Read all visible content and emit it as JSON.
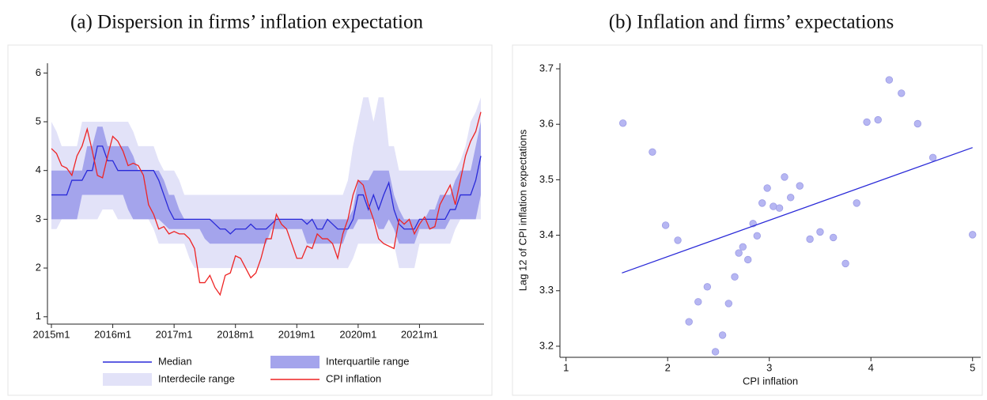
{
  "chart_data": [
    {
      "type": "line",
      "title": "(a) Dispersion in firms’ inflation expectation",
      "x": [
        "2015m1",
        "2015m2",
        "2015m3",
        "2015m4",
        "2015m5",
        "2015m6",
        "2015m7",
        "2015m8",
        "2015m9",
        "2015m10",
        "2015m11",
        "2015m12",
        "2016m1",
        "2016m2",
        "2016m3",
        "2016m4",
        "2016m5",
        "2016m6",
        "2016m7",
        "2016m8",
        "2016m9",
        "2016m10",
        "2016m11",
        "2016m12",
        "2017m1",
        "2017m2",
        "2017m3",
        "2017m4",
        "2017m5",
        "2017m6",
        "2017m7",
        "2017m8",
        "2017m9",
        "2017m10",
        "2017m11",
        "2017m12",
        "2018m1",
        "2018m2",
        "2018m3",
        "2018m4",
        "2018m5",
        "2018m6",
        "2018m7",
        "2018m8",
        "2018m9",
        "2018m10",
        "2018m11",
        "2018m12",
        "2019m1",
        "2019m2",
        "2019m3",
        "2019m4",
        "2019m5",
        "2019m6",
        "2019m7",
        "2019m8",
        "2019m9",
        "2019m10",
        "2019m11",
        "2019m12",
        "2020m1",
        "2020m2",
        "2020m3",
        "2020m4",
        "2020m5",
        "2020m6",
        "2020m7",
        "2020m8",
        "2020m9",
        "2020m10",
        "2020m11",
        "2020m12",
        "2021m1",
        "2021m2",
        "2021m3",
        "2021m4",
        "2021m5",
        "2021m6",
        "2021m7",
        "2021m8",
        "2021m9",
        "2021m10",
        "2021m11",
        "2021m12",
        "2022m1"
      ],
      "series": [
        {
          "name": "Median",
          "type": "line",
          "color": "#2a2ad8",
          "values": [
            3.5,
            3.5,
            3.5,
            3.5,
            3.8,
            3.8,
            3.8,
            4.0,
            4.0,
            4.5,
            4.5,
            4.2,
            4.2,
            4.0,
            4.0,
            4.0,
            4.0,
            4.0,
            4.0,
            4.0,
            4.0,
            3.8,
            3.5,
            3.2,
            3.0,
            3.0,
            3.0,
            3.0,
            3.0,
            3.0,
            3.0,
            3.0,
            2.9,
            2.8,
            2.8,
            2.7,
            2.8,
            2.8,
            2.8,
            2.9,
            2.8,
            2.8,
            2.8,
            2.9,
            3.0,
            3.0,
            3.0,
            3.0,
            3.0,
            3.0,
            2.9,
            3.0,
            2.8,
            2.8,
            3.0,
            2.9,
            2.8,
            2.8,
            2.8,
            3.0,
            3.5,
            3.5,
            3.2,
            3.5,
            3.2,
            3.5,
            3.75,
            3.2,
            2.9,
            2.8,
            2.8,
            2.8,
            3.0,
            3.0,
            3.0,
            3.0,
            3.0,
            3.0,
            3.2,
            3.2,
            3.5,
            3.5,
            3.5,
            3.8,
            4.3
          ]
        },
        {
          "name": "Interquartile range",
          "type": "band",
          "color": "#a4a4ec",
          "low": [
            3.0,
            3.0,
            3.0,
            3.0,
            3.0,
            3.0,
            3.5,
            3.5,
            3.5,
            3.5,
            3.5,
            3.5,
            3.5,
            3.5,
            3.5,
            3.2,
            3.0,
            3.0,
            3.0,
            3.0,
            3.0,
            3.0,
            2.9,
            2.8,
            2.8,
            2.8,
            2.8,
            2.8,
            2.8,
            2.8,
            2.6,
            2.5,
            2.5,
            2.5,
            2.5,
            2.5,
            2.5,
            2.5,
            2.5,
            2.5,
            2.5,
            2.5,
            2.5,
            2.8,
            2.8,
            2.8,
            2.8,
            2.8,
            2.8,
            2.8,
            2.5,
            2.5,
            2.5,
            2.5,
            2.5,
            2.5,
            2.5,
            2.5,
            2.8,
            2.8,
            3.0,
            3.0,
            3.0,
            3.0,
            2.8,
            2.8,
            3.0,
            2.8,
            2.5,
            2.5,
            2.5,
            2.5,
            2.8,
            2.8,
            2.8,
            2.8,
            2.8,
            2.8,
            3.0,
            3.0,
            3.0,
            3.0,
            3.0,
            3.0,
            3.5
          ],
          "high": [
            4.0,
            4.0,
            4.0,
            4.0,
            4.0,
            4.0,
            4.0,
            4.5,
            4.5,
            4.9,
            4.9,
            4.5,
            4.5,
            4.5,
            4.5,
            4.5,
            4.3,
            4.0,
            4.0,
            4.0,
            4.0,
            4.0,
            3.8,
            3.5,
            3.5,
            3.2,
            3.0,
            3.0,
            3.0,
            3.0,
            3.0,
            3.0,
            3.0,
            3.0,
            3.0,
            3.0,
            3.0,
            3.0,
            3.0,
            3.0,
            3.0,
            3.0,
            3.0,
            3.0,
            3.0,
            3.0,
            3.0,
            3.0,
            3.0,
            3.0,
            3.0,
            3.0,
            3.0,
            3.0,
            3.0,
            3.0,
            3.0,
            3.0,
            3.0,
            3.2,
            3.8,
            3.8,
            3.8,
            4.0,
            4.0,
            4.0,
            4.0,
            3.5,
            3.2,
            3.0,
            3.0,
            3.0,
            3.0,
            3.0,
            3.2,
            3.2,
            3.5,
            3.5,
            3.5,
            3.8,
            4.0,
            4.0,
            4.0,
            4.5,
            5.0
          ]
        },
        {
          "name": "Interdecile range",
          "type": "band",
          "color": "#e2e2f8",
          "low": [
            2.8,
            2.8,
            3.0,
            3.0,
            3.0,
            3.0,
            3.0,
            3.0,
            3.0,
            3.0,
            3.2,
            3.2,
            3.2,
            3.0,
            3.0,
            3.0,
            3.0,
            3.0,
            3.0,
            3.0,
            2.8,
            2.5,
            2.5,
            2.5,
            2.5,
            2.5,
            2.5,
            2.2,
            2.0,
            2.0,
            2.0,
            2.0,
            2.0,
            2.0,
            2.0,
            2.0,
            2.0,
            2.0,
            2.0,
            2.0,
            2.0,
            2.0,
            2.0,
            2.0,
            2.0,
            2.0,
            2.0,
            2.0,
            2.0,
            2.0,
            2.0,
            2.0,
            2.0,
            2.0,
            2.0,
            2.0,
            2.0,
            2.0,
            2.0,
            2.2,
            2.5,
            2.5,
            2.5,
            2.5,
            2.5,
            2.5,
            2.5,
            2.5,
            2.0,
            2.0,
            2.0,
            2.0,
            2.5,
            2.5,
            2.5,
            2.5,
            2.5,
            2.5,
            2.5,
            2.8,
            3.0,
            3.0,
            3.0,
            3.0,
            3.0
          ],
          "high": [
            5.0,
            4.8,
            4.5,
            4.5,
            4.5,
            4.5,
            5.0,
            5.0,
            5.0,
            5.0,
            5.0,
            5.0,
            5.0,
            5.0,
            5.0,
            5.0,
            4.8,
            4.5,
            4.5,
            4.5,
            4.5,
            4.2,
            4.0,
            4.0,
            4.0,
            3.8,
            3.5,
            3.5,
            3.5,
            3.5,
            3.5,
            3.5,
            3.5,
            3.5,
            3.5,
            3.5,
            3.5,
            3.5,
            3.5,
            3.5,
            3.5,
            3.5,
            3.5,
            3.5,
            3.5,
            3.5,
            3.5,
            3.5,
            3.5,
            3.5,
            3.5,
            3.5,
            3.5,
            3.5,
            3.5,
            3.5,
            3.5,
            3.5,
            3.8,
            4.5,
            5.0,
            5.5,
            5.5,
            5.0,
            5.5,
            5.5,
            4.5,
            4.5,
            4.0,
            4.0,
            4.0,
            4.0,
            4.0,
            4.0,
            4.0,
            4.0,
            4.0,
            4.0,
            4.0,
            4.0,
            4.2,
            4.5,
            5.0,
            5.2,
            5.5
          ]
        },
        {
          "name": "CPI inflation",
          "type": "line",
          "color": "#ee2424",
          "values": [
            4.45,
            4.35,
            4.1,
            4.05,
            3.9,
            4.3,
            4.5,
            4.85,
            4.4,
            3.9,
            3.85,
            4.3,
            4.7,
            4.6,
            4.4,
            4.1,
            4.15,
            4.1,
            3.9,
            3.3,
            3.1,
            2.8,
            2.85,
            2.7,
            2.75,
            2.7,
            2.7,
            2.6,
            2.4,
            1.7,
            1.7,
            1.85,
            1.6,
            1.45,
            1.85,
            1.9,
            2.25,
            2.2,
            2.0,
            1.8,
            1.9,
            2.2,
            2.6,
            2.6,
            3.1,
            2.9,
            2.8,
            2.5,
            2.2,
            2.2,
            2.45,
            2.4,
            2.7,
            2.6,
            2.6,
            2.5,
            2.2,
            2.7,
            3.0,
            3.5,
            3.8,
            3.7,
            3.3,
            3.0,
            2.6,
            2.5,
            2.45,
            2.4,
            3.0,
            2.9,
            3.0,
            2.7,
            2.9,
            3.05,
            2.8,
            2.85,
            3.3,
            3.5,
            3.7,
            3.3,
            3.8,
            4.3,
            4.6,
            4.8,
            5.2
          ]
        }
      ],
      "ylim": [
        0.85,
        6.2
      ],
      "yticks": [
        1,
        2,
        3,
        4,
        5,
        6
      ],
      "xticks": [
        "2015m1",
        "2016m1",
        "2017m1",
        "2018m1",
        "2019m1",
        "2020m1",
        "2021m1"
      ],
      "legend": "bottom"
    },
    {
      "type": "scatter",
      "title": "(b) Inflation and firms’ expectations",
      "x_label": "CPI inflation",
      "y_label": "Lag 12 of CPI inflation expectations",
      "series": [
        {
          "type": "scatter",
          "color": "#b6b6f2",
          "x": [
            1.56,
            1.85,
            1.98,
            2.1,
            2.21,
            2.3,
            2.39,
            2.47,
            2.54,
            2.6,
            2.66,
            2.7,
            2.74,
            2.79,
            2.84,
            2.88,
            2.93,
            2.98,
            3.04,
            3.1,
            3.15,
            3.21,
            3.3,
            3.4,
            3.5,
            3.63,
            3.75,
            3.86,
            3.96,
            4.07,
            4.18,
            4.3,
            4.46,
            4.61,
            5.0
          ],
          "values": [
            3.602,
            3.55,
            3.418,
            3.391,
            3.244,
            3.28,
            3.307,
            3.19,
            3.22,
            3.277,
            3.325,
            3.368,
            3.379,
            3.356,
            3.421,
            3.399,
            3.458,
            3.485,
            3.452,
            3.449,
            3.505,
            3.468,
            3.489,
            3.393,
            3.406,
            3.396,
            3.349,
            3.458,
            3.604,
            3.608,
            3.68,
            3.656,
            3.601,
            3.54,
            3.401
          ]
        },
        {
          "type": "line",
          "color": "#2a2ad8",
          "x": [
            1.55,
            5.0
          ],
          "values": [
            3.332,
            3.558
          ]
        }
      ],
      "xlim": [
        0.94,
        5.08
      ],
      "xticks": [
        1,
        2,
        3,
        4,
        5
      ],
      "ylim": [
        3.18,
        3.71
      ],
      "yticks": [
        3.2,
        3.3,
        3.4,
        3.5,
        3.6,
        3.7
      ]
    }
  ]
}
